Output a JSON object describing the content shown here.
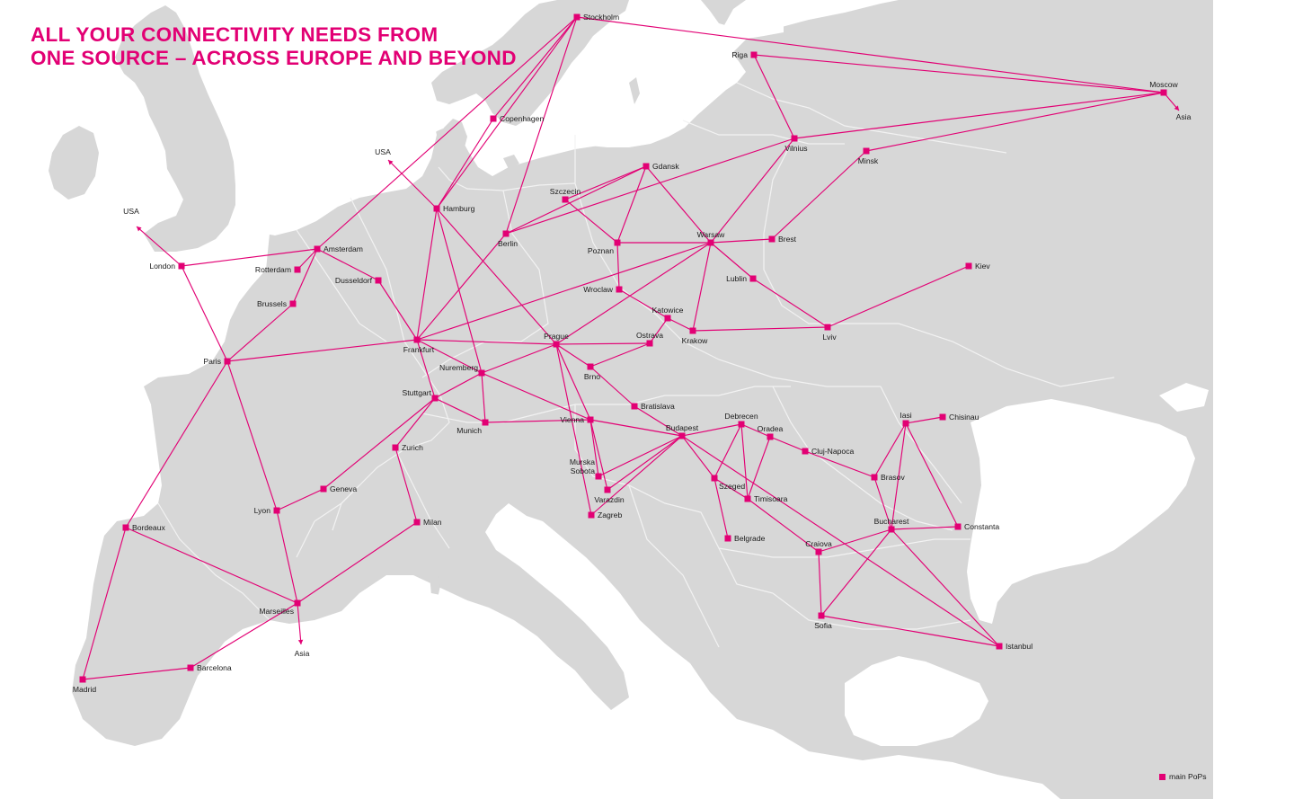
{
  "headline": {
    "line1": "ALL YOUR CONNECTIVITY NEEDS FROM",
    "line2": "ONE SOURCE – ACROSS EUROPE AND BEYOND"
  },
  "legend": {
    "label": "main PoPs"
  },
  "colors": {
    "accent": "#e20074",
    "land": "#d7d7d7",
    "sea": "#ffffff",
    "border": "#f4f4f4"
  },
  "pops": [
    {
      "id": "stockholm",
      "name": "Stockholm"
    },
    {
      "id": "riga",
      "name": "Riga"
    },
    {
      "id": "moscow",
      "name": "Moscow"
    },
    {
      "id": "copenhagen",
      "name": "Copenhagen"
    },
    {
      "id": "vilnius",
      "name": "Vilnius"
    },
    {
      "id": "minsk",
      "name": "Minsk"
    },
    {
      "id": "gdansk",
      "name": "Gdansk"
    },
    {
      "id": "szczecin",
      "name": "Szczecin"
    },
    {
      "id": "hamburg",
      "name": "Hamburg"
    },
    {
      "id": "berlin",
      "name": "Berlin"
    },
    {
      "id": "poznan",
      "name": "Poznan"
    },
    {
      "id": "warsaw",
      "name": "Warsaw"
    },
    {
      "id": "brest",
      "name": "Brest"
    },
    {
      "id": "amsterdam",
      "name": "Amsterdam"
    },
    {
      "id": "rotterdam",
      "name": "Rotterdam"
    },
    {
      "id": "london",
      "name": "London"
    },
    {
      "id": "dusseldorf",
      "name": "Dusseldorf"
    },
    {
      "id": "brussels",
      "name": "Brussels"
    },
    {
      "id": "lublin",
      "name": "Lublin"
    },
    {
      "id": "kiev",
      "name": "Kiev"
    },
    {
      "id": "wroclaw",
      "name": "Wroclaw"
    },
    {
      "id": "katowice",
      "name": "Katowice"
    },
    {
      "id": "krakow",
      "name": "Krakow"
    },
    {
      "id": "lviv",
      "name": "Lviv"
    },
    {
      "id": "frankfurt",
      "name": "Frankfurt"
    },
    {
      "id": "prague",
      "name": "Prague"
    },
    {
      "id": "ostrava",
      "name": "Ostrava"
    },
    {
      "id": "paris",
      "name": "Paris"
    },
    {
      "id": "nuremberg",
      "name": "Nuremberg"
    },
    {
      "id": "brno",
      "name": "Brno"
    },
    {
      "id": "stuttgart",
      "name": "Stuttgart"
    },
    {
      "id": "bratislava",
      "name": "Bratislava"
    },
    {
      "id": "munich",
      "name": "Munich"
    },
    {
      "id": "vienna",
      "name": "Vienna"
    },
    {
      "id": "budapest",
      "name": "Budapest"
    },
    {
      "id": "debrecen",
      "name": "Debrecen"
    },
    {
      "id": "oradea",
      "name": "Oradea"
    },
    {
      "id": "iasi",
      "name": "Iasi"
    },
    {
      "id": "chisinau",
      "name": "Chisinau"
    },
    {
      "id": "zurich",
      "name": "Zurich"
    },
    {
      "id": "cluj",
      "name": "Cluj-Napoca"
    },
    {
      "id": "geneva",
      "name": "Geneva"
    },
    {
      "id": "murska",
      "name": "Murska Sobota"
    },
    {
      "id": "szeged",
      "name": "Szeged"
    },
    {
      "id": "brasov",
      "name": "Brasov"
    },
    {
      "id": "varazdin",
      "name": "Varazdin"
    },
    {
      "id": "timisoara",
      "name": "Timisoara"
    },
    {
      "id": "lyon",
      "name": "Lyon"
    },
    {
      "id": "zagreb",
      "name": "Zagreb"
    },
    {
      "id": "bucharest",
      "name": "Bucharest"
    },
    {
      "id": "milan",
      "name": "Milan"
    },
    {
      "id": "constanta",
      "name": "Constanta"
    },
    {
      "id": "bordeaux",
      "name": "Bordeaux"
    },
    {
      "id": "belgrade",
      "name": "Belgrade"
    },
    {
      "id": "craiova",
      "name": "Craiova"
    },
    {
      "id": "marseilles",
      "name": "Marseilles"
    },
    {
      "id": "sofia",
      "name": "Sofia"
    },
    {
      "id": "istanbul",
      "name": "Istanbul"
    },
    {
      "id": "barcelona",
      "name": "Barcelona"
    },
    {
      "id": "madrid",
      "name": "Madrid"
    }
  ],
  "external_labels": [
    {
      "id": "usa-north",
      "name": "USA"
    },
    {
      "id": "usa-west",
      "name": "USA"
    },
    {
      "id": "asia-east",
      "name": "Asia"
    },
    {
      "id": "asia-south",
      "name": "Asia"
    }
  ],
  "links": [
    [
      "stockholm",
      "moscow"
    ],
    [
      "stockholm",
      "amsterdam"
    ],
    [
      "stockholm",
      "hamburg"
    ],
    [
      "stockholm",
      "copenhagen"
    ],
    [
      "stockholm",
      "berlin"
    ],
    [
      "riga",
      "moscow"
    ],
    [
      "riga",
      "vilnius"
    ],
    [
      "moscow",
      "vilnius"
    ],
    [
      "moscow",
      "minsk"
    ],
    [
      "vilnius",
      "berlin"
    ],
    [
      "vilnius",
      "warsaw"
    ],
    [
      "minsk",
      "brest"
    ],
    [
      "copenhagen",
      "hamburg"
    ],
    [
      "hamburg",
      "frankfurt"
    ],
    [
      "hamburg",
      "nuremberg"
    ],
    [
      "hamburg",
      "prague"
    ],
    [
      "berlin",
      "frankfurt"
    ],
    [
      "gdansk",
      "szczecin"
    ],
    [
      "gdansk",
      "poznan"
    ],
    [
      "gdansk",
      "warsaw"
    ],
    [
      "gdansk",
      "berlin"
    ],
    [
      "szczecin",
      "poznan"
    ],
    [
      "poznan",
      "warsaw"
    ],
    [
      "poznan",
      "wroclaw"
    ],
    [
      "warsaw",
      "brest"
    ],
    [
      "warsaw",
      "frankfurt"
    ],
    [
      "warsaw",
      "prague"
    ],
    [
      "warsaw",
      "lublin"
    ],
    [
      "warsaw",
      "krakow"
    ],
    [
      "lublin",
      "lviv"
    ],
    [
      "lviv",
      "kiev"
    ],
    [
      "lviv",
      "krakow"
    ],
    [
      "wroclaw",
      "katowice"
    ],
    [
      "katowice",
      "krakow"
    ],
    [
      "katowice",
      "ostrava"
    ],
    [
      "ostrava",
      "brno"
    ],
    [
      "prague",
      "frankfurt"
    ],
    [
      "prague",
      "ostrava"
    ],
    [
      "prague",
      "brno"
    ],
    [
      "prague",
      "nuremberg"
    ],
    [
      "prague",
      "vienna"
    ],
    [
      "prague",
      "zagreb"
    ],
    [
      "brno",
      "bratislava"
    ],
    [
      "bratislava",
      "budapest"
    ],
    [
      "london",
      "amsterdam"
    ],
    [
      "amsterdam",
      "rotterdam"
    ],
    [
      "amsterdam",
      "brussels"
    ],
    [
      "amsterdam",
      "dusseldorf"
    ],
    [
      "dusseldorf",
      "frankfurt"
    ],
    [
      "brussels",
      "paris"
    ],
    [
      "paris",
      "frankfurt"
    ],
    [
      "paris",
      "lyon"
    ],
    [
      "paris",
      "bordeaux"
    ],
    [
      "paris",
      "london"
    ],
    [
      "frankfurt",
      "nuremberg"
    ],
    [
      "frankfurt",
      "stuttgart"
    ],
    [
      "nuremberg",
      "munich"
    ],
    [
      "nuremberg",
      "stuttgart"
    ],
    [
      "nuremberg",
      "vienna"
    ],
    [
      "stuttgart",
      "munich"
    ],
    [
      "stuttgart",
      "zurich"
    ],
    [
      "stuttgart",
      "geneva"
    ],
    [
      "munich",
      "vienna"
    ],
    [
      "vienna",
      "budapest"
    ],
    [
      "vienna",
      "murska"
    ],
    [
      "vienna",
      "varazdin"
    ],
    [
      "budapest",
      "murska"
    ],
    [
      "budapest",
      "varazdin"
    ],
    [
      "budapest",
      "zagreb"
    ],
    [
      "budapest",
      "szeged"
    ],
    [
      "budapest",
      "debrecen"
    ],
    [
      "budapest",
      "istanbul"
    ],
    [
      "debrecen",
      "szeged"
    ],
    [
      "debrecen",
      "oradea"
    ],
    [
      "debrecen",
      "timisoara"
    ],
    [
      "oradea",
      "cluj"
    ],
    [
      "oradea",
      "timisoara"
    ],
    [
      "cluj",
      "brasov"
    ],
    [
      "iasi",
      "chisinau"
    ],
    [
      "iasi",
      "brasov"
    ],
    [
      "iasi",
      "bucharest"
    ],
    [
      "iasi",
      "constanta"
    ],
    [
      "brasov",
      "bucharest"
    ],
    [
      "bucharest",
      "constanta"
    ],
    [
      "bucharest",
      "craiova"
    ],
    [
      "bucharest",
      "sofia"
    ],
    [
      "bucharest",
      "istanbul"
    ],
    [
      "szeged",
      "belgrade"
    ],
    [
      "szeged",
      "timisoara"
    ],
    [
      "timisoara",
      "craiova"
    ],
    [
      "craiova",
      "sofia"
    ],
    [
      "sofia",
      "istanbul"
    ],
    [
      "zurich",
      "milan"
    ],
    [
      "geneva",
      "lyon"
    ],
    [
      "lyon",
      "marseilles"
    ],
    [
      "milan",
      "marseilles"
    ],
    [
      "bordeaux",
      "marseilles"
    ],
    [
      "bordeaux",
      "madrid"
    ],
    [
      "madrid",
      "barcelona"
    ],
    [
      "barcelona",
      "marseilles"
    ]
  ]
}
